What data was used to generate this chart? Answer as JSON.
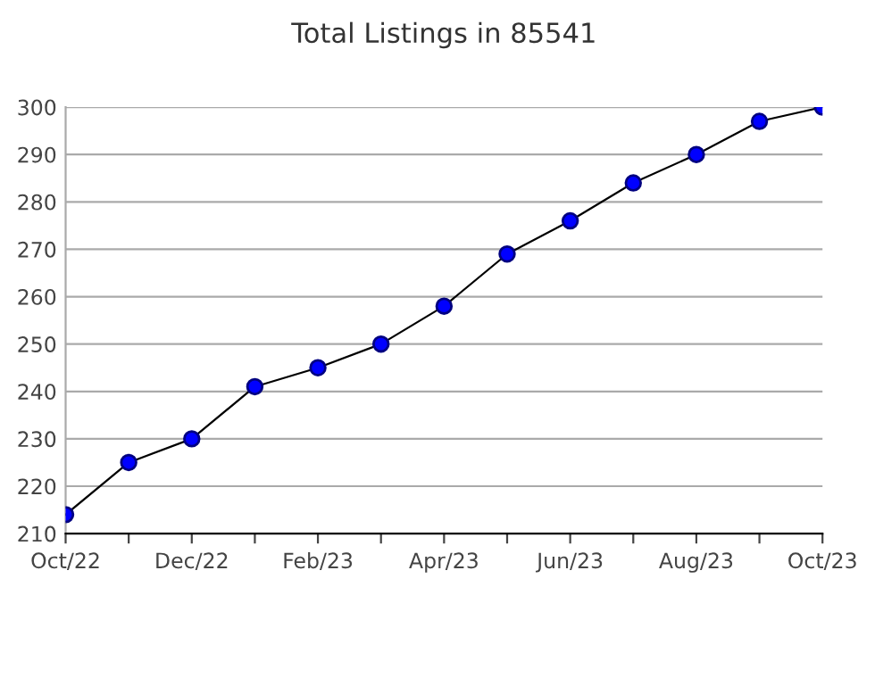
{
  "chart_data": {
    "type": "line",
    "title": "Total Listings in 85541",
    "categories": [
      "Oct/22",
      null,
      "Dec/22",
      null,
      "Feb/23",
      null,
      "Apr/23",
      null,
      "Jun/23",
      null,
      "Aug/23",
      null,
      "Oct/23"
    ],
    "series": [
      {
        "color": "#0000ff",
        "values": [
          214,
          225,
          230,
          241,
          245,
          250,
          258,
          269,
          276,
          284,
          290,
          297,
          300
        ]
      }
    ],
    "ylim": [
      210,
      300
    ],
    "yticks": [
      210,
      220,
      230,
      240,
      250,
      260,
      270,
      280,
      290,
      300
    ],
    "grid": "y",
    "legend": false,
    "marker": "circle",
    "line_style": "solid"
  }
}
